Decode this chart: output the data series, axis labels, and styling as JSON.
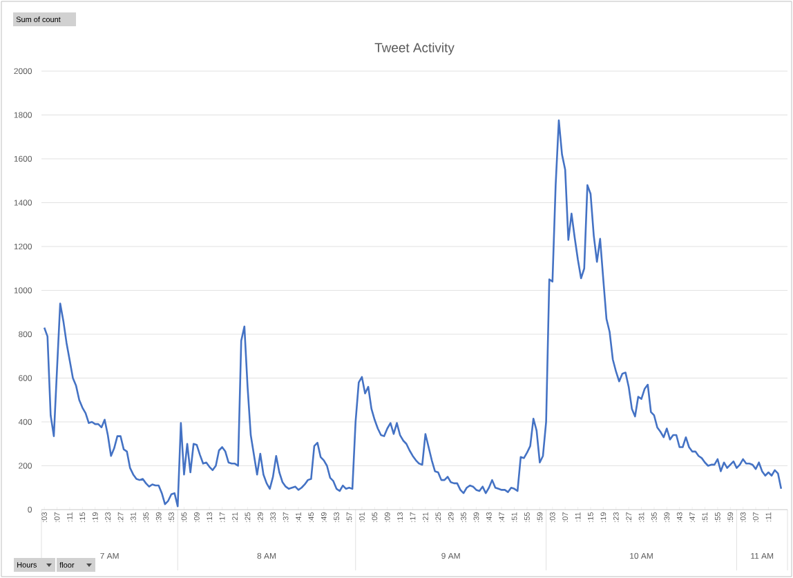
{
  "chart_data": {
    "type": "line",
    "title": "Tweet Activity",
    "categories": [
      ":03",
      null,
      null,
      null,
      ":07",
      null,
      null,
      null,
      ":11",
      null,
      null,
      null,
      ":15",
      null,
      null,
      null,
      ":19",
      null,
      null,
      null,
      ":23",
      null,
      null,
      null,
      ":27",
      null,
      null,
      null,
      ":31",
      null,
      null,
      null,
      ":35",
      null,
      null,
      null,
      ":39",
      null,
      null,
      null,
      ":53",
      null,
      null,
      null,
      ":05",
      null,
      null,
      null,
      ":09",
      null,
      null,
      null,
      ":13",
      null,
      null,
      null,
      ":17",
      null,
      null,
      null,
      ":21",
      null,
      null,
      null,
      ":25",
      null,
      null,
      null,
      ":29",
      null,
      null,
      null,
      ":33",
      null,
      null,
      null,
      ":37",
      null,
      null,
      null,
      ":41",
      null,
      null,
      null,
      ":45",
      null,
      null,
      null,
      ":49",
      null,
      null,
      null,
      ":53",
      null,
      null,
      null,
      ":57",
      null,
      null,
      null,
      ":01",
      null,
      null,
      null,
      ":05",
      null,
      null,
      null,
      ":09",
      null,
      null,
      null,
      ":13",
      null,
      null,
      null,
      ":17",
      null,
      null,
      null,
      ":21",
      null,
      null,
      null,
      ":25",
      null,
      null,
      null,
      ":29",
      null,
      null,
      null,
      ":35",
      null,
      null,
      null,
      ":39",
      null,
      null,
      null,
      ":43",
      null,
      null,
      null,
      ":47",
      null,
      null,
      null,
      ":51",
      null,
      null,
      null,
      ":55",
      null,
      null,
      null,
      ":59",
      null,
      null,
      null,
      ":03",
      null,
      null,
      null,
      ":07",
      null,
      null,
      null,
      ":11",
      null,
      null,
      null,
      ":15",
      null,
      null,
      null,
      ":19",
      null,
      null,
      null,
      ":23",
      null,
      null,
      null,
      ":27",
      null,
      null,
      null,
      ":31",
      null,
      null,
      null,
      ":35",
      null,
      null,
      null,
      ":39",
      null,
      null,
      null,
      ":43",
      null,
      null,
      null,
      ":47",
      null,
      null,
      null,
      ":51",
      null,
      null,
      null,
      ":55",
      null,
      null,
      null,
      ":59",
      null,
      null,
      null,
      ":03",
      null,
      null,
      null,
      ":07",
      null,
      null,
      null,
      ":11",
      null,
      null,
      null,
      null
    ],
    "values": [
      830,
      790,
      430,
      335,
      640,
      940,
      860,
      760,
      680,
      600,
      565,
      500,
      465,
      440,
      395,
      400,
      390,
      390,
      375,
      410,
      340,
      245,
      280,
      335,
      335,
      275,
      265,
      190,
      160,
      140,
      135,
      140,
      120,
      105,
      115,
      110,
      110,
      75,
      25,
      40,
      70,
      75,
      15,
      395,
      160,
      300,
      170,
      300,
      295,
      250,
      210,
      215,
      195,
      180,
      200,
      270,
      285,
      265,
      215,
      210,
      210,
      200,
      770,
      835,
      560,
      340,
      250,
      160,
      255,
      160,
      120,
      95,
      150,
      245,
      170,
      125,
      105,
      95,
      100,
      105,
      90,
      100,
      115,
      135,
      140,
      290,
      305,
      240,
      225,
      200,
      145,
      130,
      95,
      85,
      110,
      95,
      100,
      95,
      400,
      580,
      605,
      530,
      560,
      460,
      410,
      370,
      340,
      335,
      370,
      395,
      345,
      395,
      340,
      315,
      300,
      270,
      245,
      225,
      210,
      205,
      345,
      285,
      225,
      175,
      170,
      135,
      135,
      150,
      125,
      120,
      120,
      90,
      75,
      100,
      110,
      105,
      90,
      85,
      105,
      75,
      100,
      135,
      100,
      95,
      90,
      90,
      80,
      100,
      95,
      85,
      240,
      235,
      260,
      290,
      415,
      360,
      215,
      245,
      400,
      1050,
      1040,
      1480,
      1775,
      1620,
      1550,
      1230,
      1350,
      1240,
      1140,
      1055,
      1100,
      1480,
      1440,
      1250,
      1130,
      1235,
      1050,
      870,
      810,
      685,
      630,
      585,
      620,
      625,
      560,
      460,
      425,
      515,
      505,
      550,
      570,
      445,
      430,
      375,
      355,
      330,
      370,
      320,
      340,
      340,
      285,
      285,
      330,
      285,
      265,
      265,
      245,
      235,
      215,
      200,
      205,
      205,
      230,
      175,
      215,
      190,
      205,
      220,
      190,
      205,
      230,
      210,
      210,
      205,
      185,
      215,
      175,
      155,
      170,
      155,
      180,
      165,
      95
    ],
    "color": "#4472c4",
    "ylim": [
      0,
      2000
    ],
    "yticks": [
      0,
      200,
      400,
      600,
      800,
      1000,
      1200,
      1400,
      1600,
      1800,
      2000
    ],
    "grid": "y",
    "annotations": [
      "Sum of count",
      "Hours",
      "floor",
      "7 AM",
      "8 AM",
      "9 AM",
      "10 AM",
      "11 AM"
    ]
  }
}
